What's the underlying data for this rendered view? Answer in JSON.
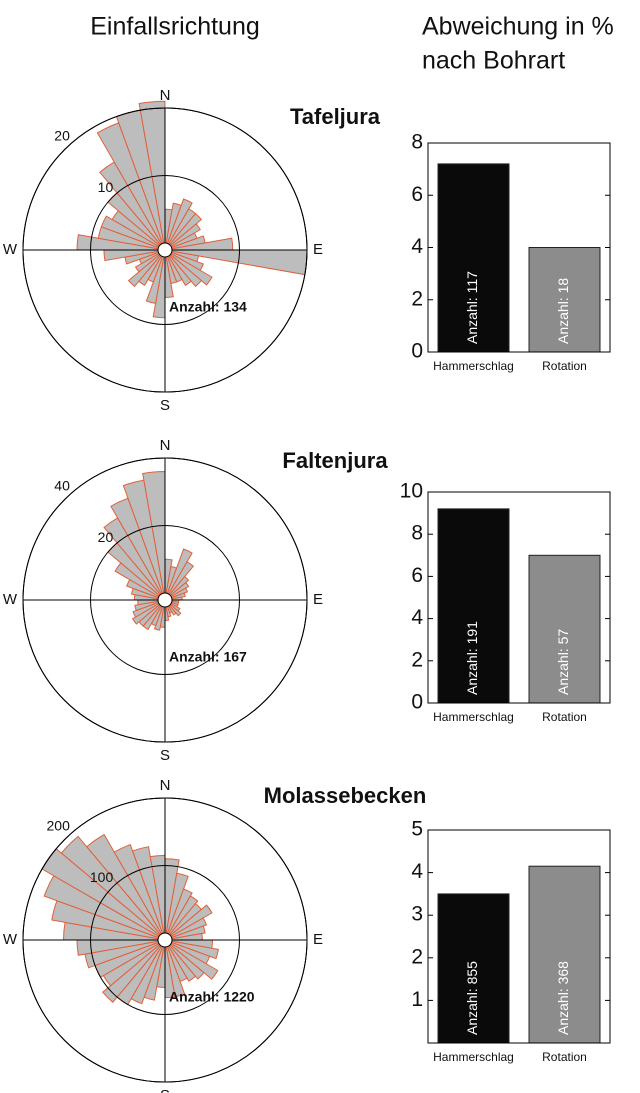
{
  "header": {
    "left": "Einfallsrichtung",
    "right": [
      "Abweichung in %",
      "nach Bohrart"
    ]
  },
  "chart_data": [
    {
      "type": "rose",
      "title": "Tafeljura",
      "directions": [
        "N",
        "E",
        "S",
        "W"
      ],
      "annotation": "Anzahl: 134",
      "values": [
        5,
        6,
        7,
        6,
        6,
        5,
        4,
        5,
        9,
        20,
        4,
        5,
        7,
        6,
        5,
        4,
        4,
        6,
        9,
        7,
        4,
        5,
        6,
        4,
        3,
        5,
        8,
        12,
        9,
        9,
        8,
        10,
        14,
        19,
        20,
        21
      ],
      "rlim": [
        0,
        20
      ],
      "rticks": [
        10,
        20
      ],
      "color": "#bdbdbd",
      "edgecolor": "#e0603a"
    },
    {
      "type": "bar",
      "categories": [
        "Hammerschlag",
        "Rotation"
      ],
      "values": [
        7.2,
        4.0
      ],
      "annotations": [
        "Anzahl: 117",
        "Anzahl: 18"
      ],
      "colors": [
        "#0a0a0a",
        "#8c8c8c"
      ],
      "ylim": [
        0,
        8
      ],
      "yticks": [
        0,
        2,
        4,
        6,
        8
      ]
    },
    {
      "type": "rose",
      "title": "Faltenjura",
      "directions": [
        "N",
        "E",
        "S",
        "W"
      ],
      "annotation": "Anzahl: 167",
      "values": [
        10,
        8,
        14,
        11,
        7,
        6,
        5,
        4,
        3,
        2,
        2,
        2,
        3,
        4,
        3,
        2,
        3,
        4,
        6,
        7,
        6,
        8,
        8,
        9,
        8,
        7,
        6,
        7,
        8,
        10,
        15,
        20,
        26,
        30,
        34,
        36
      ],
      "rlim": [
        0,
        40
      ],
      "rticks": [
        20,
        40
      ],
      "color": "#bdbdbd",
      "edgecolor": "#e0603a"
    },
    {
      "type": "bar",
      "categories": [
        "Hammerschlag",
        "Rotation"
      ],
      "values": [
        9.2,
        7.0
      ],
      "annotations": [
        "Anzahl: 191",
        "Anzahl: 57"
      ],
      "colors": [
        "#0a0a0a",
        "#8c8c8c"
      ],
      "ylim": [
        0,
        10
      ],
      "yticks": [
        0,
        2,
        4,
        6,
        8,
        10
      ]
    },
    {
      "type": "rose",
      "title": "Molassebecken",
      "directions": [
        "N",
        "E",
        "S",
        "W"
      ],
      "annotation": "Anzahl: 1220",
      "values": [
        110,
        90,
        70,
        65,
        60,
        70,
        55,
        50,
        45,
        60,
        70,
        60,
        80,
        65,
        60,
        55,
        75,
        75,
        60,
        80,
        90,
        100,
        110,
        95,
        100,
        110,
        120,
        140,
        160,
        180,
        200,
        190,
        170,
        140,
        130,
        115
      ],
      "rlim": [
        0,
        200
      ],
      "rticks": [
        100,
        200
      ],
      "color": "#bdbdbd",
      "edgecolor": "#e0603a"
    },
    {
      "type": "bar",
      "categories": [
        "Hammerschlag",
        "Rotation"
      ],
      "values": [
        3.5,
        4.15
      ],
      "annotations": [
        "Anzahl: 855",
        "Anzahl: 368"
      ],
      "colors": [
        "#0a0a0a",
        "#8c8c8c"
      ],
      "ylim": [
        0,
        5
      ],
      "yticks": [
        1,
        2,
        3,
        4,
        5
      ]
    }
  ]
}
